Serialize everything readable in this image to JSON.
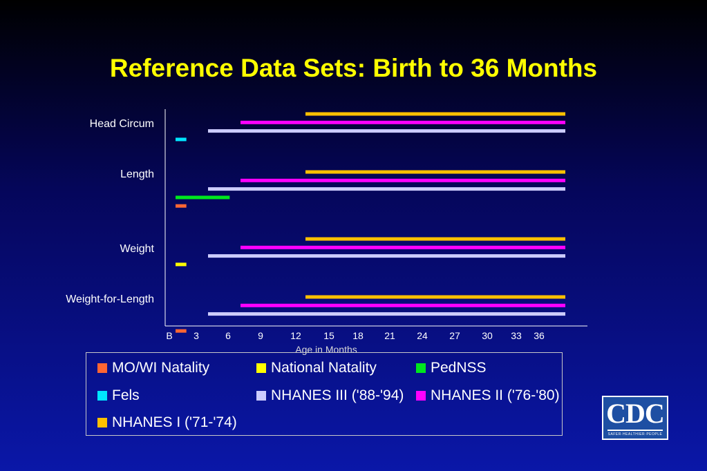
{
  "chart_data": {
    "type": "bar",
    "orientation": "horizontal-range",
    "title": "Reference Data Sets: Birth to 36 Months",
    "xlabel": "Age in Months",
    "ylabel": "",
    "x_tick_labels": [
      "B",
      "3",
      "6",
      "9",
      "12",
      "15",
      "18",
      "21",
      "24",
      "27",
      "30",
      "33",
      "36"
    ],
    "categories": [
      "Head Circum",
      "Length",
      "Weight",
      "Weight-for-Length"
    ],
    "legend_position": "bottom",
    "series": [
      {
        "name": "MO/WI Natality",
        "color": "#ff6633",
        "ranges": [
          {
            "category": "Length",
            "start": 0,
            "end": 1
          },
          {
            "category": "Weight-for-Length",
            "start": 0,
            "end": 1
          }
        ]
      },
      {
        "name": "National Natality",
        "color": "#ffff00",
        "ranges": [
          {
            "category": "Weight",
            "start": 0,
            "end": 1
          }
        ]
      },
      {
        "name": "PedNSS",
        "color": "#00e61e",
        "ranges": [
          {
            "category": "Length",
            "start": 0,
            "end": 5
          }
        ]
      },
      {
        "name": "Fels",
        "color": "#00e5ff",
        "ranges": [
          {
            "category": "Head Circum",
            "start": 0,
            "end": 1
          }
        ]
      },
      {
        "name": "NHANES III ('88-'94)",
        "color": "#ccccff",
        "ranges": [
          {
            "category": "Head Circum",
            "start": 3,
            "end": 36
          },
          {
            "category": "Length",
            "start": 3,
            "end": 36
          },
          {
            "category": "Weight",
            "start": 3,
            "end": 36
          },
          {
            "category": "Weight-for-Length",
            "start": 3,
            "end": 36
          }
        ]
      },
      {
        "name": "NHANES II ('76-'80)",
        "color": "#ff00ff",
        "ranges": [
          {
            "category": "Head Circum",
            "start": 6,
            "end": 36
          },
          {
            "category": "Length",
            "start": 6,
            "end": 36
          },
          {
            "category": "Weight",
            "start": 6,
            "end": 36
          },
          {
            "category": "Weight-for-Length",
            "start": 6,
            "end": 36
          }
        ]
      },
      {
        "name": "NHANES I ('71-'74)",
        "color": "#ffc000",
        "ranges": [
          {
            "category": "Head Circum",
            "start": 12,
            "end": 36
          },
          {
            "category": "Length",
            "start": 12,
            "end": 36
          },
          {
            "category": "Weight",
            "start": 12,
            "end": 36
          },
          {
            "category": "Weight-for-Length",
            "start": 12,
            "end": 36
          }
        ]
      }
    ]
  },
  "logo": {
    "letters": "CDC",
    "tagline": "SAFER·HEALTHIER·PEOPLE"
  }
}
